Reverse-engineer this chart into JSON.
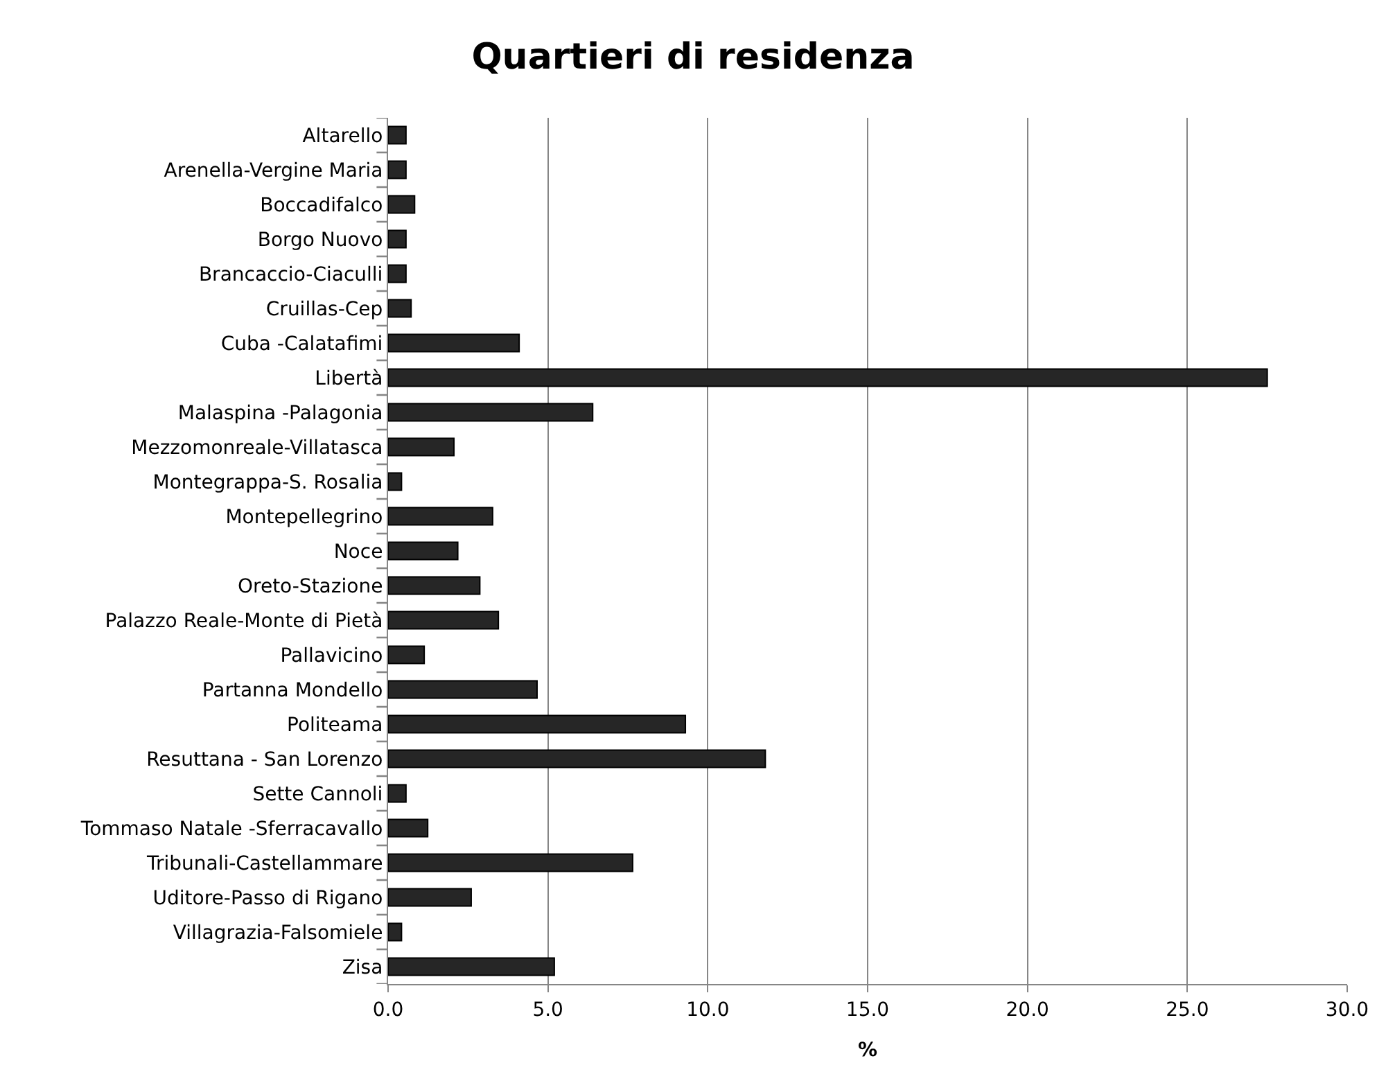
{
  "chart_data": {
    "type": "bar",
    "orientation": "horizontal",
    "title": "Quartieri di residenza",
    "xlabel": "%",
    "categories": [
      "Altarello",
      "Arenella-Vergine Maria",
      "Boccadifalco",
      "Borgo Nuovo",
      "Brancaccio-Ciaculli",
      "Cruillas-Cep",
      "Cuba -Calatafimi",
      "Libertà",
      "Malaspina -Palagonia",
      "Mezzomonreale-Villatasca",
      "Montegrappa-S. Rosalia",
      "Montepellegrino",
      "Noce",
      "Oreto-Stazione",
      "Palazzo Reale-Monte di Pietà",
      "Pallavicino",
      "Partanna Mondello",
      "Politeama",
      "Resuttana - San Lorenzo",
      "Sette Cannoli",
      "Tommaso Natale -Sferracavallo",
      "Tribunali-Castellammare",
      "Uditore-Passo di Rigano",
      "Villagrazia-Falsomiele",
      "Zisa"
    ],
    "values": [
      0.56,
      0.56,
      0.83,
      0.56,
      0.56,
      0.72,
      4.1,
      27.5,
      6.4,
      2.06,
      0.42,
      3.27,
      2.18,
      2.87,
      3.45,
      1.13,
      4.66,
      9.3,
      11.8,
      0.56,
      1.24,
      7.65,
      2.6,
      0.42,
      5.2
    ],
    "color": "#262626",
    "xlim": [
      0,
      30
    ],
    "xticks": [
      {
        "value": 0,
        "label": "0.0"
      },
      {
        "value": 5,
        "label": "5.0"
      },
      {
        "value": 10,
        "label": "10.0"
      },
      {
        "value": 15,
        "label": "15.0"
      },
      {
        "value": 20,
        "label": "20.0"
      },
      {
        "value": 25,
        "label": "25.0"
      },
      {
        "value": 30,
        "label": "30.0"
      }
    ],
    "grid": "x",
    "legend": false
  }
}
